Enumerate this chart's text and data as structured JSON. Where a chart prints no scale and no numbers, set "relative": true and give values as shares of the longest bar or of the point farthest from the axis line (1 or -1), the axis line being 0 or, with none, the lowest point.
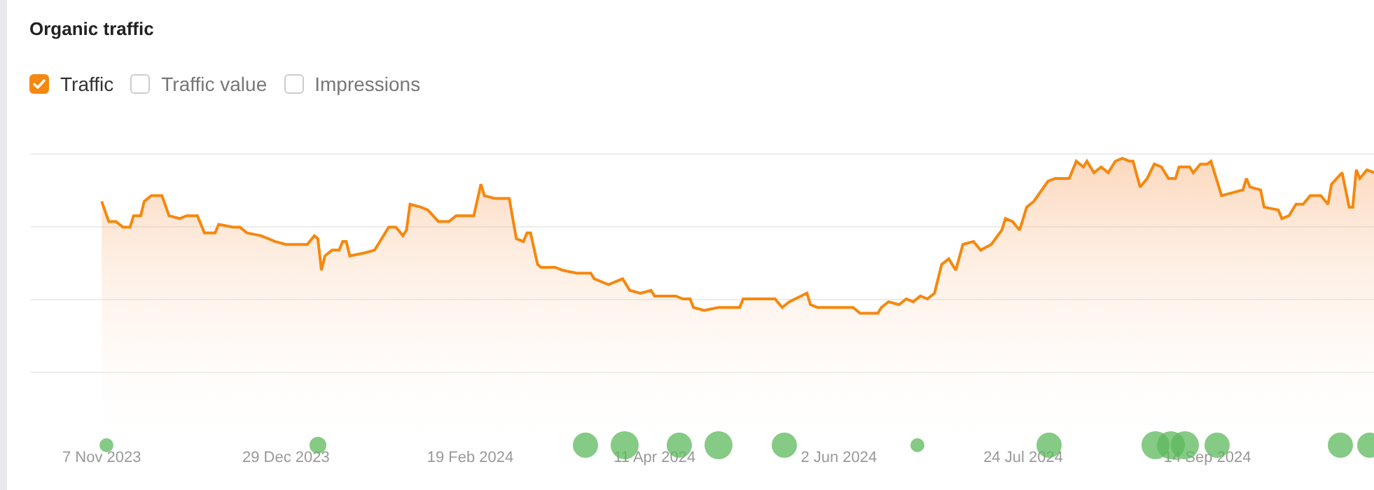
{
  "chart_data": {
    "type": "area",
    "title": "Organic traffic",
    "relative": true,
    "legend": "top left",
    "grid": "y",
    "annotations": [
      "Traffic value",
      "Impressions"
    ],
    "xlim": [
      "2023-10-18",
      "2024-10-31"
    ],
    "xticks": [
      {
        "value": "2023-11-07",
        "label": "7 Nov 2023"
      },
      {
        "value": "2023-12-29",
        "label": "29 Dec 2023"
      },
      {
        "value": "2024-02-19",
        "label": "19 Feb 2024"
      },
      {
        "value": "2024-04-11",
        "label": "11 Apr 2024"
      },
      {
        "value": "2024-06-02",
        "label": "2 Jun 2024"
      },
      {
        "value": "2024-07-24",
        "label": "24 Jul 2024"
      },
      {
        "value": "2024-09-14",
        "label": "14 Sep 2024"
      }
    ],
    "x": [
      "2023-11-07",
      "2023-11-09",
      "2023-11-11",
      "2023-11-13",
      "2023-11-15",
      "2023-11-16",
      "2023-11-18",
      "2023-11-19",
      "2023-11-21",
      "2023-11-24",
      "2023-11-26",
      "2023-11-29",
      "2023-12-01",
      "2023-12-04",
      "2023-12-06",
      "2023-12-09",
      "2023-12-10",
      "2023-12-14",
      "2023-12-16",
      "2023-12-18",
      "2023-12-22",
      "2023-12-26",
      "2023-12-29",
      "2024-01-04",
      "2024-01-06",
      "2024-01-07",
      "2024-01-08",
      "2024-01-09",
      "2024-01-11",
      "2024-01-13",
      "2024-01-14",
      "2024-01-15",
      "2024-01-16",
      "2024-01-20",
      "2024-01-23",
      "2024-01-25",
      "2024-01-27",
      "2024-01-29",
      "2024-01-31",
      "2024-02-01",
      "2024-02-02",
      "2024-02-05",
      "2024-02-07",
      "2024-02-10",
      "2024-02-13",
      "2024-02-15",
      "2024-02-20",
      "2024-02-22",
      "2024-02-23",
      "2024-02-26",
      "2024-03-01",
      "2024-03-03",
      "2024-03-05",
      "2024-03-06",
      "2024-03-07",
      "2024-03-09",
      "2024-03-10",
      "2024-03-14",
      "2024-03-16",
      "2024-03-20",
      "2024-03-24",
      "2024-03-25",
      "2024-03-29",
      "2024-03-31",
      "2024-04-02",
      "2024-04-04",
      "2024-04-07",
      "2024-04-10",
      "2024-04-11",
      "2024-04-17",
      "2024-04-19",
      "2024-04-21",
      "2024-04-22",
      "2024-04-25",
      "2024-04-29",
      "2024-05-05",
      "2024-05-06",
      "2024-05-15",
      "2024-05-17",
      "2024-05-19",
      "2024-05-24",
      "2024-05-25",
      "2024-05-27",
      "2024-06-06",
      "2024-06-08",
      "2024-06-13",
      "2024-06-14",
      "2024-06-16",
      "2024-06-19",
      "2024-06-21",
      "2024-06-23",
      "2024-06-25",
      "2024-06-27",
      "2024-06-29",
      "2024-06-30",
      "2024-07-01",
      "2024-07-03",
      "2024-07-05",
      "2024-07-07",
      "2024-07-10",
      "2024-07-12",
      "2024-07-15",
      "2024-07-18",
      "2024-07-19",
      "2024-07-21",
      "2024-07-23",
      "2024-07-25",
      "2024-07-27",
      "2024-07-31",
      "2024-08-02",
      "2024-08-06",
      "2024-08-08",
      "2024-08-10",
      "2024-08-11",
      "2024-08-13",
      "2024-08-15",
      "2024-08-17",
      "2024-08-19",
      "2024-08-21",
      "2024-08-23",
      "2024-08-24",
      "2024-08-26",
      "2024-08-28",
      "2024-08-30",
      "2024-09-01",
      "2024-09-03",
      "2024-09-05",
      "2024-09-06",
      "2024-09-09",
      "2024-09-10",
      "2024-09-12",
      "2024-09-14",
      "2024-09-15",
      "2024-09-18",
      "2024-09-21",
      "2024-09-24",
      "2024-09-25",
      "2024-09-26",
      "2024-09-29",
      "2024-09-30",
      "2024-10-04",
      "2024-10-05",
      "2024-10-07",
      "2024-10-09",
      "2024-10-11",
      "2024-10-13",
      "2024-10-16",
      "2024-10-18",
      "2024-10-19",
      "2024-10-22",
      "2024-10-24",
      "2024-10-25",
      "2024-10-26",
      "2024-10-27",
      "2024-10-29",
      "2024-10-31"
    ],
    "series": [
      {
        "name": "Traffic",
        "color": "#f5880f",
        "values": [
          0.85,
          0.78,
          0.78,
          0.76,
          0.76,
          0.8,
          0.8,
          0.85,
          0.87,
          0.87,
          0.8,
          0.79,
          0.8,
          0.8,
          0.74,
          0.74,
          0.77,
          0.76,
          0.76,
          0.74,
          0.73,
          0.71,
          0.7,
          0.7,
          0.73,
          0.72,
          0.61,
          0.66,
          0.68,
          0.68,
          0.71,
          0.71,
          0.66,
          0.67,
          0.68,
          0.72,
          0.76,
          0.76,
          0.73,
          0.75,
          0.84,
          0.83,
          0.82,
          0.78,
          0.78,
          0.8,
          0.8,
          0.91,
          0.87,
          0.86,
          0.86,
          0.72,
          0.71,
          0.74,
          0.74,
          0.63,
          0.62,
          0.62,
          0.61,
          0.6,
          0.6,
          0.58,
          0.56,
          0.57,
          0.58,
          0.54,
          0.53,
          0.54,
          0.52,
          0.52,
          0.51,
          0.51,
          0.48,
          0.47,
          0.48,
          0.48,
          0.51,
          0.51,
          0.48,
          0.5,
          0.53,
          0.49,
          0.48,
          0.48,
          0.46,
          0.46,
          0.48,
          0.5,
          0.49,
          0.51,
          0.5,
          0.52,
          0.51,
          0.53,
          0.58,
          0.63,
          0.65,
          0.61,
          0.7,
          0.71,
          0.68,
          0.7,
          0.75,
          0.79,
          0.78,
          0.75,
          0.83,
          0.85,
          0.92,
          0.93,
          0.93,
          0.99,
          0.97,
          0.99,
          0.95,
          0.97,
          0.95,
          0.99,
          1,
          0.99,
          0.99,
          0.9,
          0.93,
          0.98,
          0.97,
          0.93,
          0.93,
          0.97,
          0.97,
          0.95,
          0.98,
          0.98,
          0.99,
          0.87,
          0.88,
          0.89,
          0.93,
          0.9,
          0.89,
          0.83,
          0.82,
          0.79,
          0.8,
          0.84,
          0.84,
          0.87,
          0.87,
          0.84,
          0.91,
          0.95,
          0.83,
          0.83,
          0.96,
          0.93,
          0.96,
          0.95
        ]
      }
    ]
  }
}
